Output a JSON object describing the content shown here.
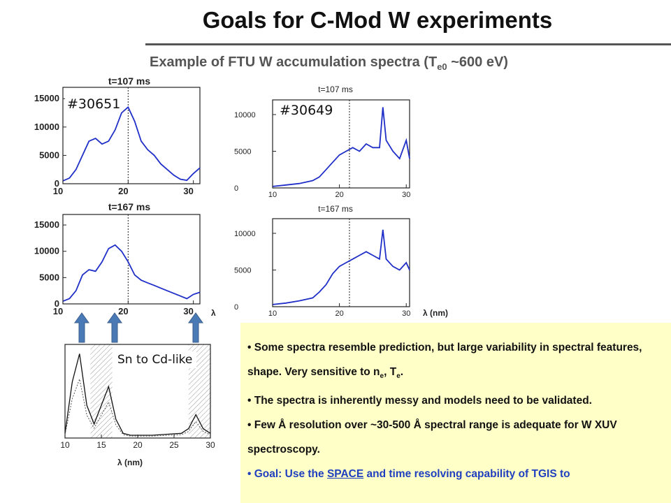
{
  "slide": {
    "title": "Goals for C-Mod W experiments",
    "subtitle_pre": "Example of FTU W accumulation spectra (T",
    "subtitle_sub": "e0",
    "subtitle_post": " ~600 eV)"
  },
  "labels": {
    "shot_left": "#30651",
    "shot_right": "#30649",
    "sn_cd": "Sn to Cd-like",
    "lambda_right": "λ (nm)",
    "lambda_bottom": "λ (nm)",
    "lambda_stray": "λ"
  },
  "bullets": [
    {
      "pre": "Some spectra resemble prediction, but large variability in spectral features, shape. Very sensitive to n",
      "s1": "e",
      "mid": ", T",
      "s2": "e",
      "post": "."
    },
    {
      "text": "The spectra is inherently messy and models need to be validated."
    },
    {
      "text": "Few Å resolution over ~30-500 Å spectral range is adequate for W XUV spectroscopy."
    },
    {
      "pre": "Goal: Use the ",
      "link": "SPACE",
      "post": " and time resolving capability of TGIS to"
    }
  ],
  "colors": {
    "trace": "#1f2fc8",
    "arrow": "#4a7ab5",
    "box": "#ffffc8"
  },
  "chart_data": [
    {
      "type": "line",
      "title": "t=107 ms",
      "x": [
        10,
        11,
        12,
        13,
        14,
        15,
        16,
        17,
        18,
        19,
        20,
        21,
        22,
        23,
        24,
        25,
        26,
        27,
        28,
        29,
        30,
        31
      ],
      "y": [
        500,
        1000,
        2500,
        5000,
        7500,
        8000,
        7000,
        7500,
        9500,
        12500,
        13500,
        11000,
        7500,
        6000,
        5000,
        3500,
        2500,
        1500,
        800,
        600,
        1800,
        2800
      ],
      "xlim": [
        10,
        31
      ],
      "ylim": [
        0,
        17000
      ],
      "xticks": [
        10,
        20,
        30
      ],
      "yticks": [
        0,
        5000,
        10000,
        15000
      ],
      "marker_x": 20
    },
    {
      "type": "line",
      "title": "t=167 ms",
      "x": [
        10,
        11,
        12,
        13,
        14,
        15,
        16,
        17,
        18,
        19,
        20,
        21,
        22,
        23,
        24,
        25,
        26,
        27,
        28,
        29,
        30,
        31
      ],
      "y": [
        500,
        1000,
        2500,
        5500,
        6500,
        6200,
        8000,
        10500,
        11200,
        10000,
        8000,
        5500,
        4500,
        4000,
        3500,
        3000,
        2500,
        2000,
        1500,
        1000,
        1800,
        2200
      ],
      "xlim": [
        10,
        31
      ],
      "ylim": [
        0,
        17000
      ],
      "xticks": [
        10,
        20,
        30
      ],
      "yticks": [
        0,
        5000,
        10000,
        15000
      ],
      "marker_x": 20
    },
    {
      "type": "line",
      "title": "t=107 ms",
      "x": [
        10,
        12,
        14,
        16,
        17,
        18,
        19,
        20,
        21,
        22,
        23,
        24,
        25,
        26,
        26.5,
        27,
        28,
        29,
        30,
        30.5
      ],
      "y": [
        200,
        400,
        600,
        1000,
        1500,
        2500,
        3500,
        4500,
        5000,
        5500,
        5000,
        6000,
        5500,
        5500,
        11000,
        6500,
        5000,
        4000,
        6500,
        4000
      ],
      "xlim": [
        10,
        30.5
      ],
      "ylim": [
        0,
        12000
      ],
      "xticks": [
        10,
        20,
        30
      ],
      "yticks": [
        0,
        5000,
        10000
      ],
      "marker_x": 21.5
    },
    {
      "type": "line",
      "title": "t=167 ms",
      "x": [
        10,
        12,
        14,
        16,
        17,
        18,
        19,
        20,
        21,
        22,
        23,
        24,
        25,
        26,
        26.5,
        27,
        28,
        29,
        30,
        30.5
      ],
      "y": [
        300,
        500,
        800,
        1200,
        2000,
        3000,
        4500,
        5500,
        6000,
        6500,
        7000,
        7500,
        7000,
        6500,
        10500,
        6500,
        5500,
        5000,
        6000,
        5000
      ],
      "xlim": [
        10,
        30.5
      ],
      "ylim": [
        0,
        12000
      ],
      "xticks": [
        10,
        20,
        30
      ],
      "yticks": [
        0,
        5000,
        10000
      ],
      "marker_x": 21.5
    },
    {
      "type": "line",
      "title": "",
      "x": [
        10,
        11,
        12,
        13,
        14,
        15,
        16,
        17,
        18,
        19,
        20,
        22,
        24,
        26,
        27,
        28,
        29,
        30
      ],
      "y": [
        0.05,
        0.6,
        0.9,
        0.35,
        0.15,
        0.35,
        0.55,
        0.2,
        0.05,
        0.03,
        0.03,
        0.03,
        0.04,
        0.05,
        0.1,
        0.25,
        0.1,
        0.05
      ],
      "xlim": [
        10,
        30
      ],
      "ylim": [
        0,
        1
      ],
      "xticks": [
        10,
        15,
        20,
        25,
        30
      ],
      "yticks": []
    }
  ]
}
